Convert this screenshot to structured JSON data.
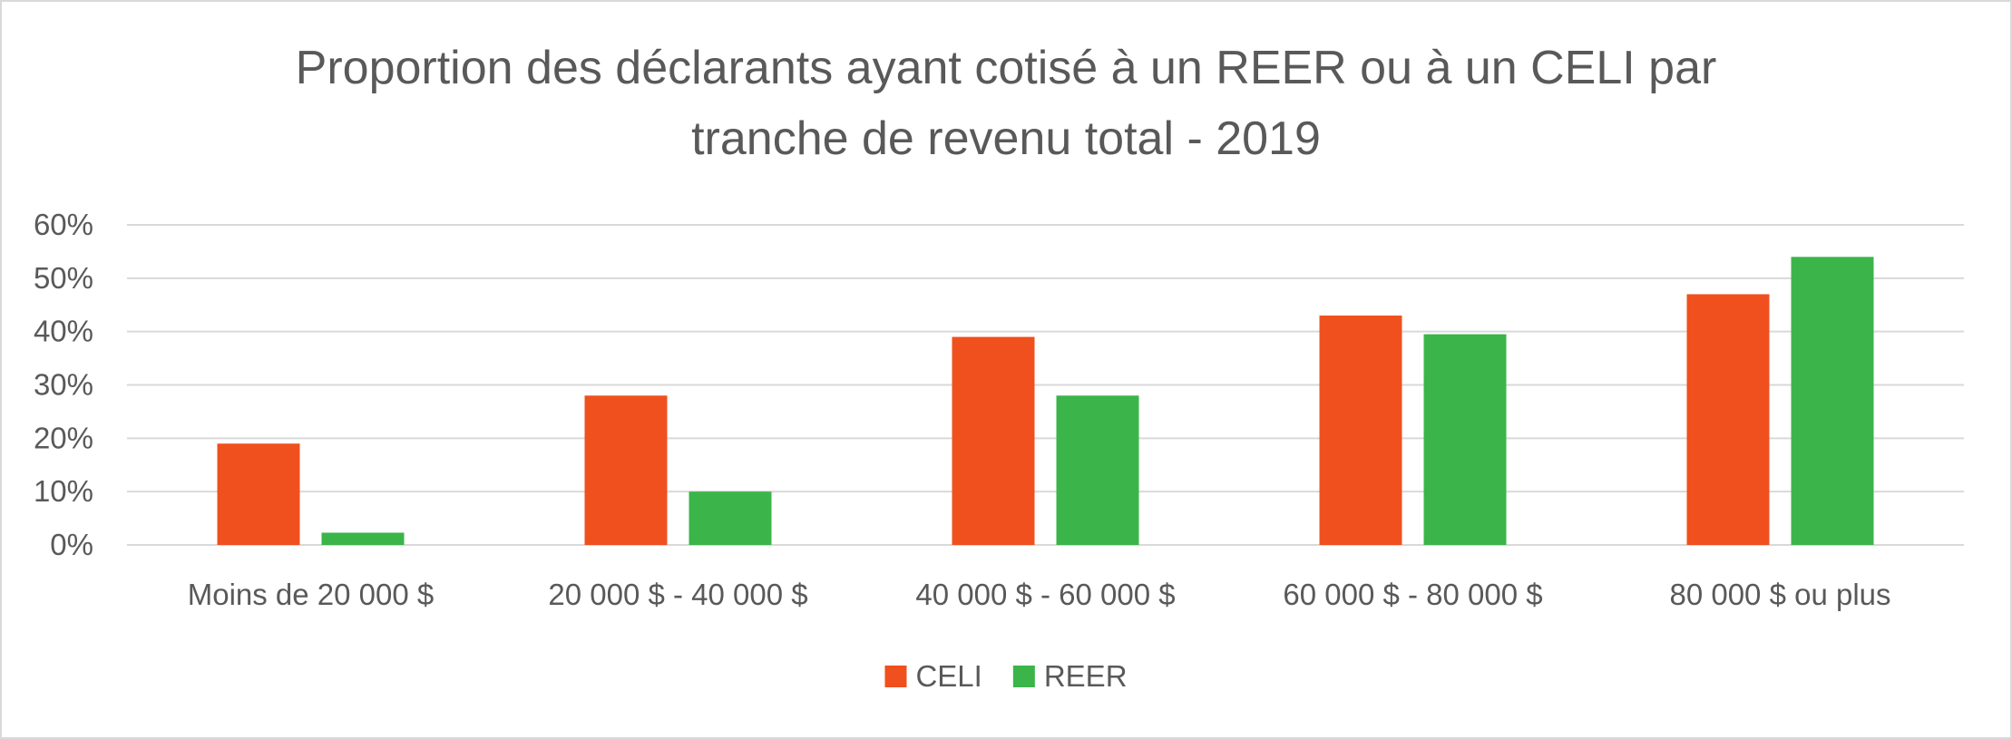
{
  "chart_data": {
    "type": "bar",
    "title_lines": [
      "Proportion des déclarants ayant cotisé à un REER ou à un CELI par",
      "tranche de revenu total - 2019"
    ],
    "categories": [
      "Moins de 20 000 $",
      "20 000 $ - 40 000 $",
      "40 000 $ - 60 000 $",
      "60 000 $ - 80 000 $",
      "80 000 $ ou plus"
    ],
    "series": [
      {
        "name": "CELI",
        "color": "#ef501e",
        "values": [
          19,
          28,
          39,
          43,
          47
        ]
      },
      {
        "name": "REER",
        "color": "#3bb54a",
        "values": [
          2.3,
          10,
          28,
          39.5,
          54
        ]
      }
    ],
    "y_ticks": [
      "0%",
      "10%",
      "20%",
      "30%",
      "40%",
      "50%",
      "60%"
    ],
    "ylim": [
      0,
      60
    ],
    "y_unit": "%",
    "grid": true,
    "gridline_color": "#d9d9d9",
    "legend_position": "bottom"
  }
}
